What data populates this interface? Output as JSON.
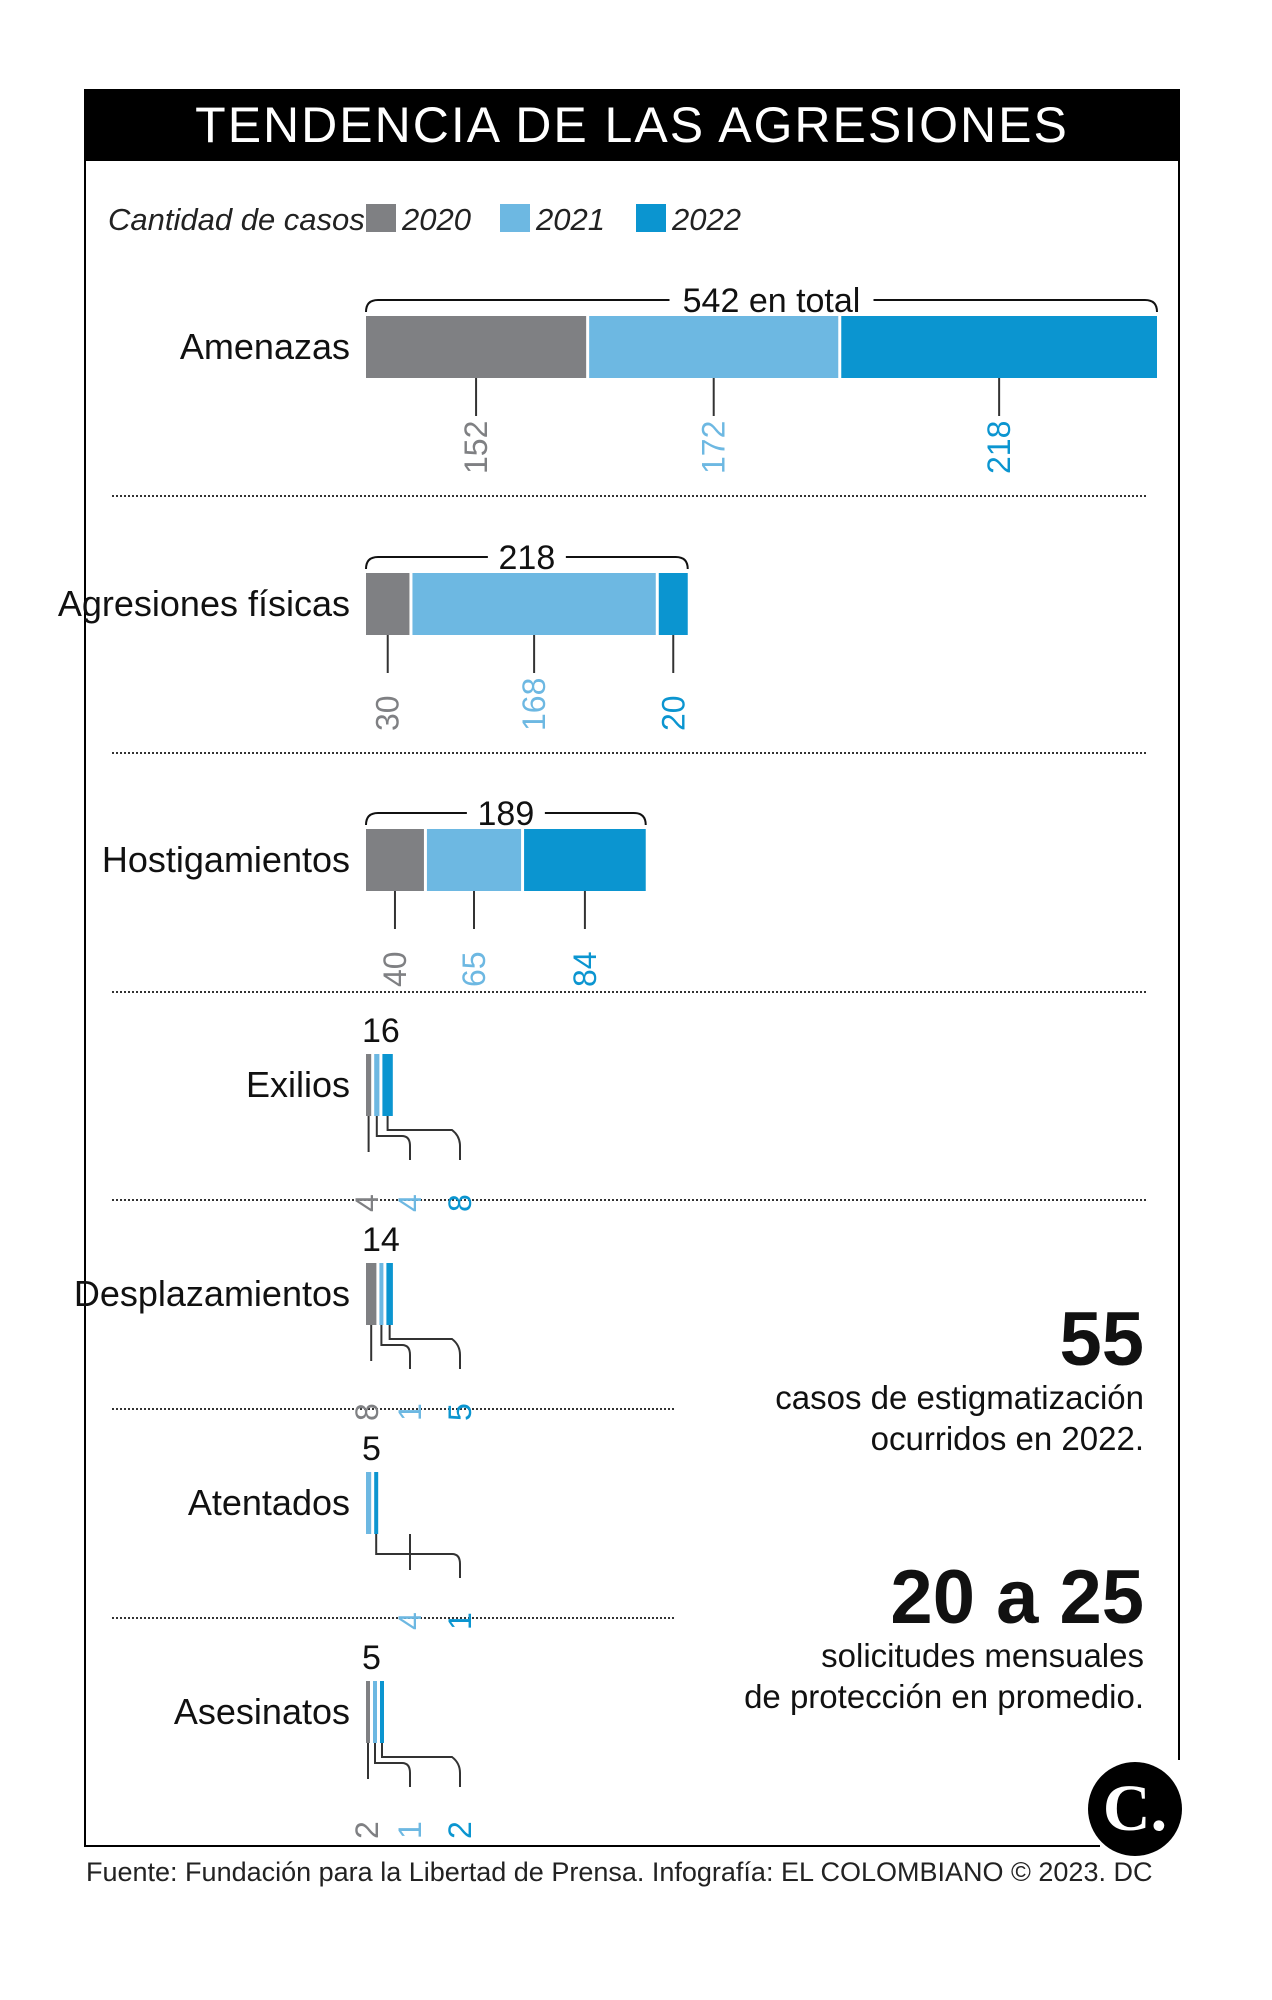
{
  "title": "TENDENCIA DE LAS AGRESIONES",
  "source": "Fuente: Fundación para la Libertad de Prensa. Infografía: EL COLOMBIANO © 2023. DC",
  "logo_text": "C.",
  "colors": {
    "2020": "#7f8083",
    "2021": "#6db8e2",
    "2022": "#0b95d0",
    "text": "#111111"
  },
  "chart_data": {
    "type": "bar",
    "subtype": "stacked-horizontal",
    "title": "TENDENCIA DE LAS AGRESIONES",
    "legend_title": "Cantidad de casos",
    "legend_position": "top-left",
    "series_names": [
      "2020",
      "2021",
      "2022"
    ],
    "categories": [
      {
        "label": "Amenazas",
        "total_label": "542 en total",
        "values": [
          152,
          172,
          218
        ]
      },
      {
        "label": "Agresiones físicas",
        "total_label": "218",
        "values": [
          30,
          168,
          20
        ]
      },
      {
        "label": "Hostigamientos",
        "total_label": "189",
        "values": [
          40,
          65,
          84
        ]
      },
      {
        "label": "Exilios",
        "total_label": "16",
        "values": [
          4,
          4,
          8
        ]
      },
      {
        "label": "Desplazamientos",
        "total_label": "14",
        "values": [
          8,
          1,
          5
        ]
      },
      {
        "label": "Atentados",
        "total_label": "5",
        "values": [
          0,
          4,
          1
        ]
      },
      {
        "label": "Asesinatos",
        "total_label": "5",
        "values": [
          2,
          1,
          2
        ]
      }
    ],
    "value_labels": [
      [
        "152",
        "172",
        "218"
      ],
      [
        "30",
        "168",
        "20"
      ],
      [
        "40",
        "65",
        "84"
      ],
      [
        "4",
        "4",
        "8"
      ],
      [
        "8",
        "1",
        "5"
      ],
      [
        "",
        "4",
        "1"
      ],
      [
        "2",
        "1",
        "2"
      ]
    ]
  },
  "stats": [
    {
      "number": "55",
      "line1": "casos de estigmatización",
      "line2": "ocurridos en 2022."
    },
    {
      "number": "20 a 25",
      "line1": "solicitudes mensuales",
      "line2": "de protección en promedio."
    }
  ]
}
